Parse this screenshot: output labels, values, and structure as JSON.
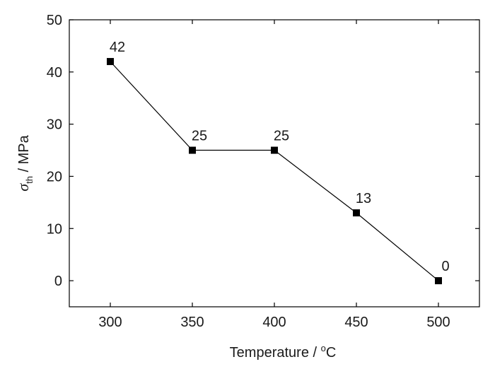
{
  "chart_data": {
    "type": "line",
    "x": [
      300,
      350,
      400,
      450,
      500
    ],
    "series": [
      {
        "values": [
          42,
          25,
          25,
          13,
          0
        ]
      }
    ],
    "data_labels": [
      "42",
      "25",
      "25",
      "13",
      "0"
    ],
    "xlabel": {
      "main": "Temperature / ",
      "sup": "o",
      "unit": "C"
    },
    "ylabel": {
      "symbol": "σ",
      "sub": "th",
      "rest": " / MPa"
    },
    "xlim": [
      275,
      525
    ],
    "ylim": [
      -5,
      50
    ],
    "xticks": [
      300,
      350,
      400,
      450,
      500
    ],
    "yticks": [
      0,
      10,
      20,
      30,
      40,
      50
    ],
    "grid": false,
    "marker": "square",
    "color": "#000000"
  }
}
